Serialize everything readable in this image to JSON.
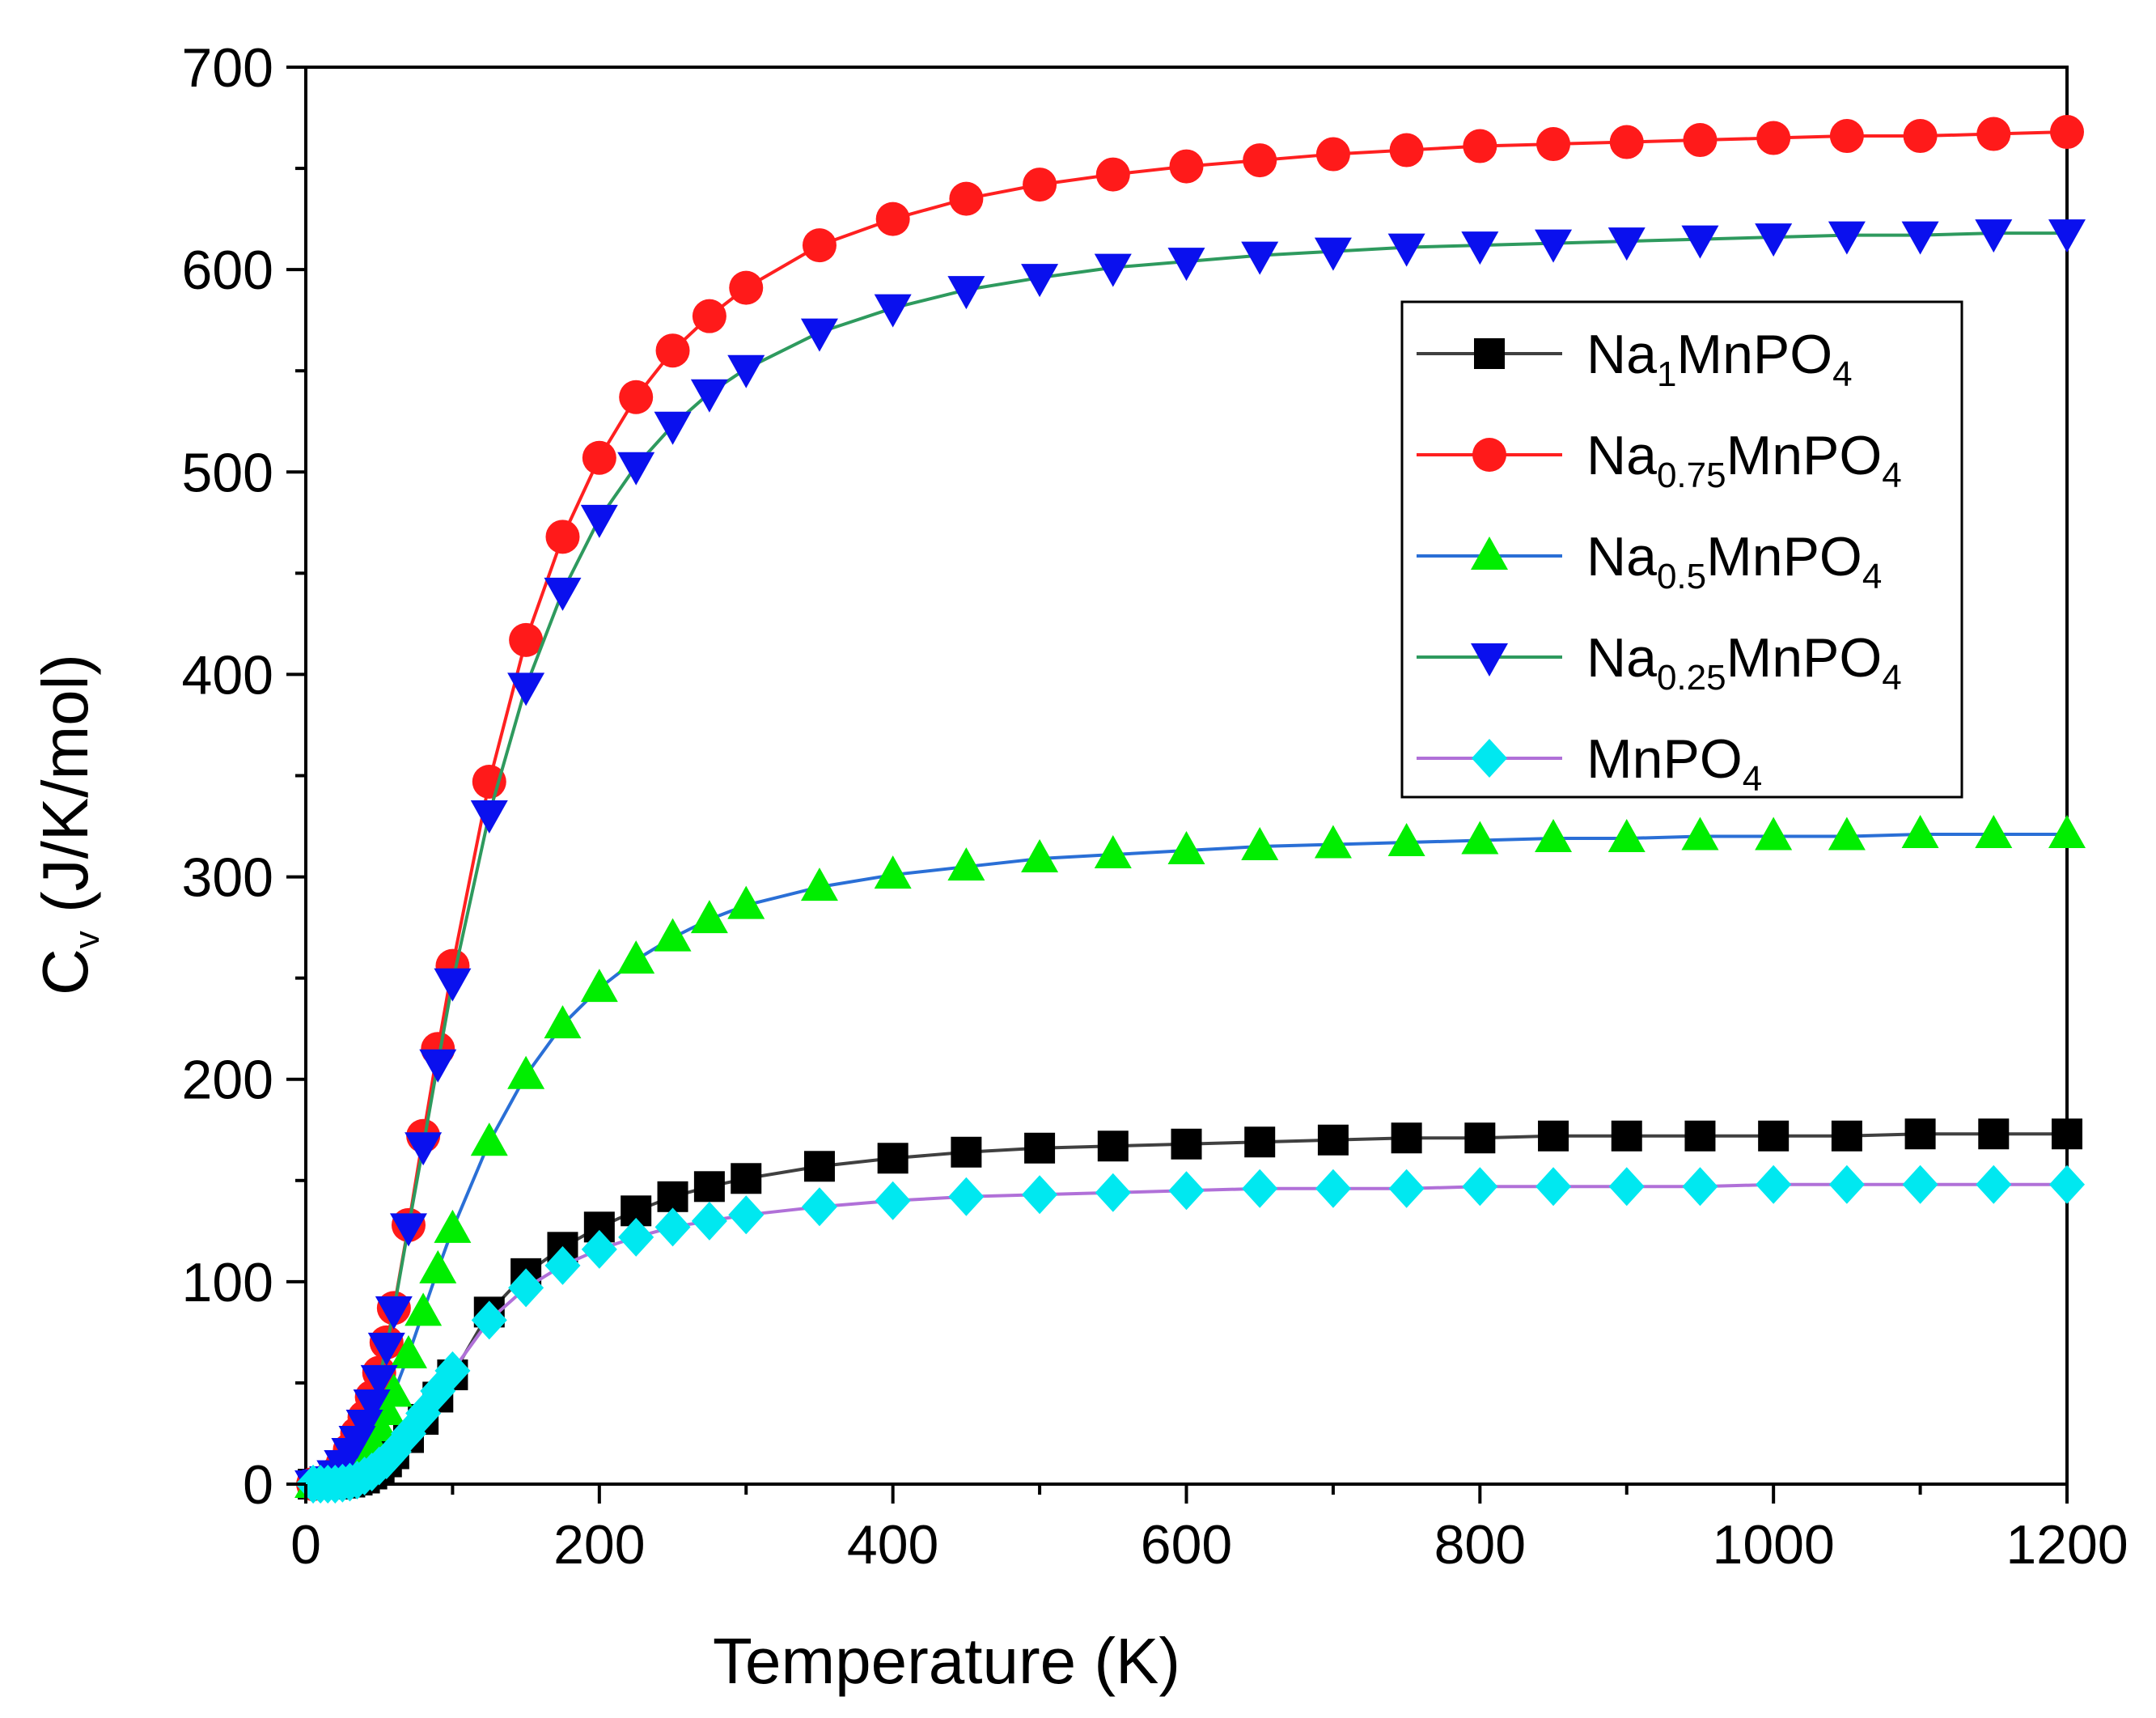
{
  "chart_data": {
    "type": "line",
    "title": "",
    "xlabel": "Temperature (K)",
    "ylabel": {
      "main": "C",
      "sub": "v",
      "rest": " (J/K/mol)"
    },
    "xlim": [
      0,
      1200
    ],
    "ylim": [
      0,
      700
    ],
    "xticks": [
      0,
      200,
      400,
      600,
      800,
      1000,
      1200
    ],
    "yticks": [
      0,
      100,
      200,
      300,
      400,
      500,
      600,
      700
    ],
    "xtick_labels": [
      "0",
      "200",
      "400",
      "600",
      "800",
      "1000",
      "1200"
    ],
    "ytick_labels": [
      "0",
      "100",
      "200",
      "300",
      "400",
      "500",
      "600",
      "700"
    ],
    "grid": false,
    "legend_position": "top-right",
    "x": [
      5,
      10,
      15,
      20,
      25,
      30,
      35,
      40,
      45,
      50,
      55,
      60,
      70,
      80,
      90,
      100,
      125,
      150,
      175,
      200,
      225,
      250,
      275,
      300,
      350,
      400,
      450,
      500,
      550,
      600,
      650,
      700,
      750,
      800,
      850,
      900,
      950,
      1000,
      1050,
      1100,
      1150,
      1200
    ],
    "series": [
      {
        "name": "Na1MnPO4",
        "legend": {
          "base": "Na",
          "sub": "1",
          "mid": "MnPO",
          "sub2": "4"
        },
        "line_color": "#404040",
        "marker_color": "#000000",
        "marker": "square",
        "values": [
          0,
          0,
          0,
          0,
          0.5,
          1,
          2,
          3,
          5,
          8,
          11,
          15,
          23,
          32,
          43,
          54,
          85,
          104,
          117,
          127,
          135,
          142,
          147,
          151,
          157,
          161,
          164,
          166,
          167,
          168,
          169,
          170,
          171,
          171,
          172,
          172,
          172,
          172,
          172,
          173,
          173,
          173
        ]
      },
      {
        "name": "Na0.75MnPO4",
        "legend": {
          "base": "Na",
          "sub": "0.75",
          "mid": "MnPO",
          "sub2": "4"
        },
        "line_color": "#ff2020",
        "marker_color": "#ff1a1a",
        "marker": "circle",
        "values": [
          0,
          0.5,
          2,
          5,
          10,
          17,
          25,
          33,
          43,
          55,
          70,
          87,
          128,
          172,
          215,
          256,
          347,
          417,
          468,
          507,
          537,
          560,
          577,
          591,
          612,
          625,
          635,
          642,
          647,
          651,
          654,
          657,
          659,
          661,
          662,
          663,
          664,
          665,
          666,
          666,
          667,
          668
        ]
      },
      {
        "name": "Na0.5MnPO4",
        "legend": {
          "base": "Na",
          "sub": "0.5",
          "mid": "MnPO",
          "sub2": "4"
        },
        "line_color": "#2a6fd6",
        "marker_color": "#00ee00",
        "marker": "triangle-up",
        "values": [
          0,
          0,
          0.5,
          1,
          3,
          5,
          9,
          14,
          20,
          28,
          36,
          45,
          64,
          85,
          106,
          126,
          169,
          202,
          227,
          245,
          259,
          270,
          279,
          286,
          295,
          301,
          305,
          309,
          311,
          313,
          315,
          316,
          317,
          318,
          319,
          319,
          320,
          320,
          320,
          321,
          321,
          321
        ]
      },
      {
        "name": "Na0.25MnPO4",
        "legend": {
          "base": "Na",
          "sub": "0.25",
          "mid": "MnPO",
          "sub2": "4"
        },
        "line_color": "#2e9a5e",
        "marker_color": "#0a10ee",
        "marker": "triangle-down",
        "values": [
          0,
          0.5,
          2,
          5,
          10,
          16,
          22,
          30,
          40,
          52,
          68,
          86,
          127,
          167,
          208,
          248,
          331,
          394,
          441,
          477,
          503,
          523,
          539,
          551,
          569,
          581,
          590,
          596,
          601,
          604,
          607,
          609,
          611,
          612,
          613,
          614,
          615,
          616,
          617,
          617,
          618,
          618
        ]
      },
      {
        "name": "MnPO4",
        "legend": {
          "base": "",
          "sub": "",
          "mid": "MnPO",
          "sub2": "4"
        },
        "line_color": "#b070d8",
        "marker_color": "#00e8f0",
        "marker": "diamond",
        "values": [
          0,
          0,
          0,
          0,
          0.5,
          1,
          2,
          4,
          6,
          9,
          12,
          16,
          25,
          35,
          46,
          56,
          81,
          97,
          108,
          116,
          122,
          127,
          130,
          133,
          137,
          140,
          142,
          143,
          144,
          145,
          146,
          146,
          146,
          147,
          147,
          147,
          147,
          148,
          148,
          148,
          148,
          148
        ]
      }
    ]
  }
}
